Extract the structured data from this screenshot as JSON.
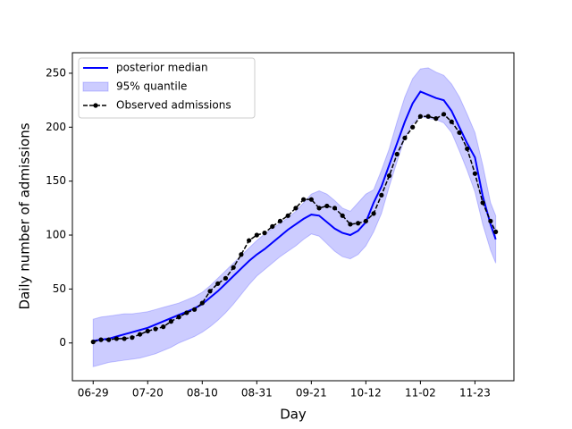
{
  "chart_data": {
    "type": "line",
    "xlabel": "Day",
    "ylabel": "Daily number of admissions",
    "x": [
      "06-29",
      "07-02",
      "07-05",
      "07-08",
      "07-11",
      "07-14",
      "07-17",
      "07-20",
      "07-23",
      "07-26",
      "07-29",
      "08-01",
      "08-04",
      "08-07",
      "08-10",
      "08-13",
      "08-16",
      "08-19",
      "08-22",
      "08-25",
      "08-28",
      "08-31",
      "09-03",
      "09-06",
      "09-09",
      "09-12",
      "09-15",
      "09-18",
      "09-21",
      "09-24",
      "09-27",
      "09-30",
      "10-03",
      "10-06",
      "10-09",
      "10-12",
      "10-15",
      "10-18",
      "10-21",
      "10-24",
      "10-27",
      "10-30",
      "11-02",
      "11-05",
      "11-08",
      "11-11",
      "11-14",
      "11-17",
      "11-20",
      "11-23",
      "11-26",
      "11-29",
      "12-01"
    ],
    "series": [
      {
        "name": "posterior median",
        "color": "#0000ff",
        "style": "line",
        "values": [
          2,
          3,
          4,
          6,
          8,
          10,
          12,
          14,
          17,
          20,
          23,
          26,
          29,
          32,
          36,
          42,
          48,
          55,
          62,
          69,
          76,
          82,
          87,
          93,
          99,
          105,
          110,
          115,
          119,
          118,
          112,
          106,
          102,
          100,
          104,
          112,
          130,
          145,
          165,
          185,
          205,
          222,
          233,
          230,
          227,
          225,
          215,
          200,
          185,
          172,
          136,
          110,
          96
        ]
      },
      {
        "name": "95% quantile",
        "color": "#0000ff",
        "style": "band",
        "alpha": 0.2,
        "lower": [
          -22,
          -20,
          -18,
          -17,
          -16,
          -15,
          -14,
          -12,
          -10,
          -7,
          -4,
          0,
          3,
          6,
          10,
          15,
          21,
          28,
          36,
          45,
          54,
          62,
          68,
          74,
          80,
          85,
          90,
          96,
          101,
          99,
          92,
          85,
          80,
          78,
          82,
          90,
          103,
          120,
          145,
          168,
          190,
          203,
          210,
          208,
          207,
          204,
          195,
          178,
          160,
          140,
          110,
          86,
          74
        ],
        "upper": [
          22,
          24,
          25,
          26,
          27,
          27,
          28,
          29,
          31,
          33,
          35,
          37,
          40,
          43,
          47,
          53,
          60,
          67,
          74,
          81,
          88,
          95,
          101,
          106,
          111,
          116,
          122,
          130,
          138,
          141,
          138,
          132,
          125,
          122,
          130,
          138,
          142,
          160,
          180,
          205,
          228,
          245,
          254,
          255,
          251,
          248,
          240,
          228,
          212,
          195,
          165,
          130,
          118
        ]
      },
      {
        "name": "Observed admissions",
        "color": "#000000",
        "style": "dots",
        "values": [
          1,
          3,
          3,
          4,
          4,
          5,
          8,
          11,
          13,
          15,
          20,
          24,
          28,
          31,
          37,
          48,
          55,
          60,
          70,
          82,
          95,
          100,
          102,
          108,
          113,
          118,
          125,
          133,
          133,
          125,
          127,
          125,
          118,
          110,
          111,
          113,
          120,
          137,
          155,
          175,
          190,
          200,
          210,
          210,
          208,
          212,
          205,
          195,
          180,
          157,
          130,
          113,
          103
        ]
      }
    ],
    "xlim": [
      "06-21",
      "12-08"
    ],
    "xticks": [
      "06-29",
      "07-20",
      "08-10",
      "08-31",
      "09-21",
      "10-12",
      "11-02",
      "11-23"
    ],
    "ylim": [
      -35,
      269
    ],
    "yticks": [
      0,
      50,
      100,
      150,
      200,
      250
    ],
    "grid": false,
    "legend": "upper left"
  }
}
